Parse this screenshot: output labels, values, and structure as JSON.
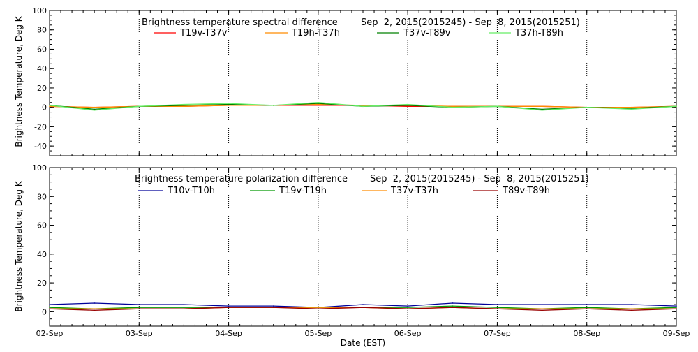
{
  "chart_data": [
    {
      "type": "line",
      "title": "Brightness temperature spectral difference",
      "date_range": "Sep  2, 2015(2015245) - Sep  8, 2015(2015251)",
      "ylabel": "Brightness Temperature, Deg K",
      "xlabel": "",
      "ylim": [
        -50,
        100
      ],
      "yticks": [
        -40,
        -20,
        0,
        20,
        40,
        60,
        80,
        100
      ],
      "xlim": [
        "2015-09-02",
        "2015-09-09"
      ],
      "grid": true,
      "legend_position": "top",
      "series": [
        {
          "name": "T19v-T37v",
          "color": "#ff0000",
          "x": [
            "2015-09-02",
            "2015-09-02T12",
            "2015-09-03",
            "2015-09-03T12",
            "2015-09-04",
            "2015-09-04T12",
            "2015-09-05",
            "2015-09-05T12",
            "2015-09-06",
            "2015-09-06T12",
            "2015-09-07",
            "2015-09-07T12",
            "2015-09-08",
            "2015-09-08T12",
            "2015-09-09"
          ],
          "values": [
            1,
            0,
            1,
            1,
            2,
            2,
            2,
            2,
            1,
            1,
            1,
            1,
            0,
            0,
            1
          ]
        },
        {
          "name": "T19h-T37h",
          "color": "#ff8c00",
          "x": [
            "2015-09-02",
            "2015-09-02T12",
            "2015-09-03",
            "2015-09-03T12",
            "2015-09-04",
            "2015-09-04T12",
            "2015-09-05",
            "2015-09-05T12",
            "2015-09-06",
            "2015-09-06T12",
            "2015-09-07",
            "2015-09-07T12",
            "2015-09-08",
            "2015-09-08T12",
            "2015-09-09"
          ],
          "values": [
            1,
            0,
            1,
            1,
            2,
            2,
            3,
            2,
            2,
            1,
            1,
            1,
            0,
            0,
            1
          ]
        },
        {
          "name": "T37v-T89v",
          "color": "#008000",
          "x": [
            "2015-09-02",
            "2015-09-02T12",
            "2015-09-03",
            "2015-09-03T12",
            "2015-09-04",
            "2015-09-04T12",
            "2015-09-05",
            "2015-09-05T12",
            "2015-09-06",
            "2015-09-06T12",
            "2015-09-07",
            "2015-09-07T12",
            "2015-09-08",
            "2015-09-08T12",
            "2015-09-09"
          ],
          "values": [
            2,
            -2,
            1,
            2,
            3,
            2,
            4,
            1,
            2,
            0,
            1,
            -2,
            0,
            -1,
            1
          ]
        },
        {
          "name": "T37h-T89h",
          "color": "#66ee66",
          "x": [
            "2015-09-02",
            "2015-09-02T12",
            "2015-09-03",
            "2015-09-03T12",
            "2015-09-04",
            "2015-09-04T12",
            "2015-09-05",
            "2015-09-05T12",
            "2015-09-06",
            "2015-09-06T12",
            "2015-09-07",
            "2015-09-07T12",
            "2015-09-08",
            "2015-09-08T12",
            "2015-09-09"
          ],
          "values": [
            2,
            -3,
            1,
            3,
            4,
            2,
            5,
            1,
            3,
            0,
            1,
            -3,
            0,
            -2,
            1
          ]
        }
      ]
    },
    {
      "type": "line",
      "title": "Brightness temperature polarization difference",
      "date_range": "Sep  2, 2015(2015245) - Sep  8, 2015(2015251)",
      "ylabel": "Brightness Temperature, Deg K",
      "xlabel": "Date (EST)",
      "ylim": [
        -10,
        100
      ],
      "yticks": [
        0,
        20,
        40,
        60,
        80,
        100
      ],
      "xlim": [
        "2015-09-02",
        "2015-09-09"
      ],
      "xtick_labels": [
        "02-Sep",
        "03-Sep",
        "04-Sep",
        "05-Sep",
        "06-Sep",
        "07-Sep",
        "08-Sep",
        "09-Sep"
      ],
      "grid": true,
      "legend_position": "top",
      "series": [
        {
          "name": "T10v-T10h",
          "color": "#000099",
          "x": [
            "2015-09-02",
            "2015-09-02T12",
            "2015-09-03",
            "2015-09-03T12",
            "2015-09-04",
            "2015-09-04T12",
            "2015-09-05",
            "2015-09-05T12",
            "2015-09-06",
            "2015-09-06T12",
            "2015-09-07",
            "2015-09-07T12",
            "2015-09-08",
            "2015-09-08T12",
            "2015-09-09"
          ],
          "values": [
            5,
            6,
            5,
            5,
            4,
            4,
            3,
            5,
            4,
            6,
            5,
            5,
            5,
            5,
            4
          ]
        },
        {
          "name": "T19v-T19h",
          "color": "#009900",
          "x": [
            "2015-09-02",
            "2015-09-02T12",
            "2015-09-03",
            "2015-09-03T12",
            "2015-09-04",
            "2015-09-04T12",
            "2015-09-05",
            "2015-09-05T12",
            "2015-09-06",
            "2015-09-06T12",
            "2015-09-07",
            "2015-09-07T12",
            "2015-09-08",
            "2015-09-08T12",
            "2015-09-09"
          ],
          "values": [
            3,
            2,
            3,
            3,
            3,
            3,
            3,
            3,
            3,
            4,
            3,
            2,
            3,
            2,
            3
          ]
        },
        {
          "name": "T37v-T37h",
          "color": "#ff8c00",
          "x": [
            "2015-09-02",
            "2015-09-02T12",
            "2015-09-03",
            "2015-09-03T12",
            "2015-09-04",
            "2015-09-04T12",
            "2015-09-05",
            "2015-09-05T12",
            "2015-09-06",
            "2015-09-06T12",
            "2015-09-07",
            "2015-09-07T12",
            "2015-09-08",
            "2015-09-08T12",
            "2015-09-09"
          ],
          "values": [
            2,
            2,
            2,
            2,
            3,
            3,
            3,
            3,
            2,
            3,
            2,
            2,
            2,
            2,
            2
          ]
        },
        {
          "name": "T89v-T89h",
          "color": "#990000",
          "x": [
            "2015-09-02",
            "2015-09-02T12",
            "2015-09-03",
            "2015-09-03T12",
            "2015-09-04",
            "2015-09-04T12",
            "2015-09-05",
            "2015-09-05T12",
            "2015-09-06",
            "2015-09-06T12",
            "2015-09-07",
            "2015-09-07T12",
            "2015-09-08",
            "2015-09-08T12",
            "2015-09-09"
          ],
          "values": [
            2,
            1,
            2,
            2,
            3,
            3,
            2,
            3,
            2,
            3,
            2,
            1,
            2,
            1,
            2
          ]
        }
      ]
    }
  ]
}
